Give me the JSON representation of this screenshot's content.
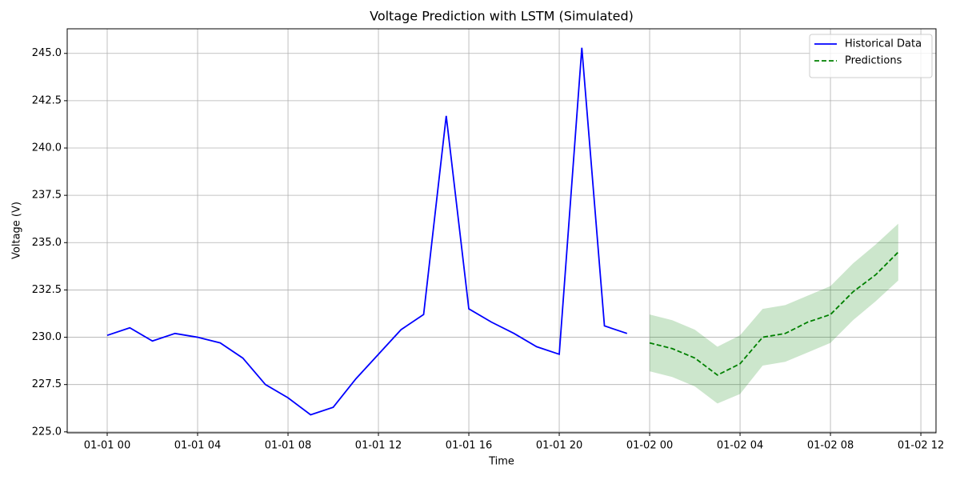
{
  "chart_data": {
    "type": "line",
    "title": "Voltage Prediction with LSTM (Simulated)",
    "xlabel": "Time",
    "ylabel": "Voltage (V)",
    "series": [
      {
        "name": "Historical Data",
        "color": "#0000ff",
        "style": "solid",
        "x": [
          0,
          1,
          2,
          3,
          4,
          5,
          6,
          7,
          8,
          9,
          10,
          11,
          12,
          13,
          14,
          15,
          16,
          17,
          18,
          19,
          20,
          21,
          22,
          23
        ],
        "values": [
          230.1,
          230.5,
          229.8,
          230.2,
          230.0,
          229.7,
          228.9,
          227.5,
          226.8,
          225.9,
          226.3,
          227.8,
          229.1,
          230.4,
          231.2,
          241.7,
          231.5,
          230.8,
          230.2,
          229.5,
          229.1,
          245.3,
          230.6,
          230.2
        ]
      },
      {
        "name": "Predictions",
        "color": "#008000",
        "style": "dashed",
        "x": [
          24,
          25,
          26,
          27,
          28,
          29,
          30,
          31,
          32,
          33,
          34,
          35
        ],
        "values": [
          229.7,
          229.4,
          228.9,
          228.0,
          228.6,
          230.0,
          230.2,
          230.8,
          231.2,
          232.4,
          233.3,
          234.5
        ],
        "band": {
          "color": "#008000",
          "opacity": 0.2,
          "lower": [
            228.2,
            227.9,
            227.4,
            226.5,
            227.0,
            228.5,
            228.7,
            229.2,
            229.7,
            230.9,
            231.9,
            233.0
          ],
          "upper": [
            231.2,
            230.9,
            230.4,
            229.5,
            230.1,
            231.5,
            231.7,
            232.2,
            232.7,
            233.9,
            234.9,
            236.0
          ]
        }
      }
    ],
    "xlim": [
      -1.77,
      36.67
    ],
    "xticks": [
      {
        "value": 0,
        "label": "01-01 00"
      },
      {
        "value": 4,
        "label": "01-01 04"
      },
      {
        "value": 8,
        "label": "01-01 08"
      },
      {
        "value": 12,
        "label": "01-01 12"
      },
      {
        "value": 16,
        "label": "01-01 16"
      },
      {
        "value": 20,
        "label": "01-01 20"
      },
      {
        "value": 24,
        "label": "01-02 00"
      },
      {
        "value": 28,
        "label": "01-02 04"
      },
      {
        "value": 32,
        "label": "01-02 08"
      },
      {
        "value": 36,
        "label": "01-02 12"
      }
    ],
    "ylim": [
      224.95,
      246.3
    ],
    "yticks": [
      {
        "value": 225,
        "label": "225.0"
      },
      227.5,
      {
        "value": 230,
        "label": "230.0"
      },
      232.5,
      {
        "value": 235,
        "label": "235.0"
      },
      237.5,
      {
        "value": 240,
        "label": "240.0"
      },
      242.5,
      {
        "value": 245,
        "label": "245.0"
      }
    ],
    "grid": true,
    "legend": "upper right"
  }
}
